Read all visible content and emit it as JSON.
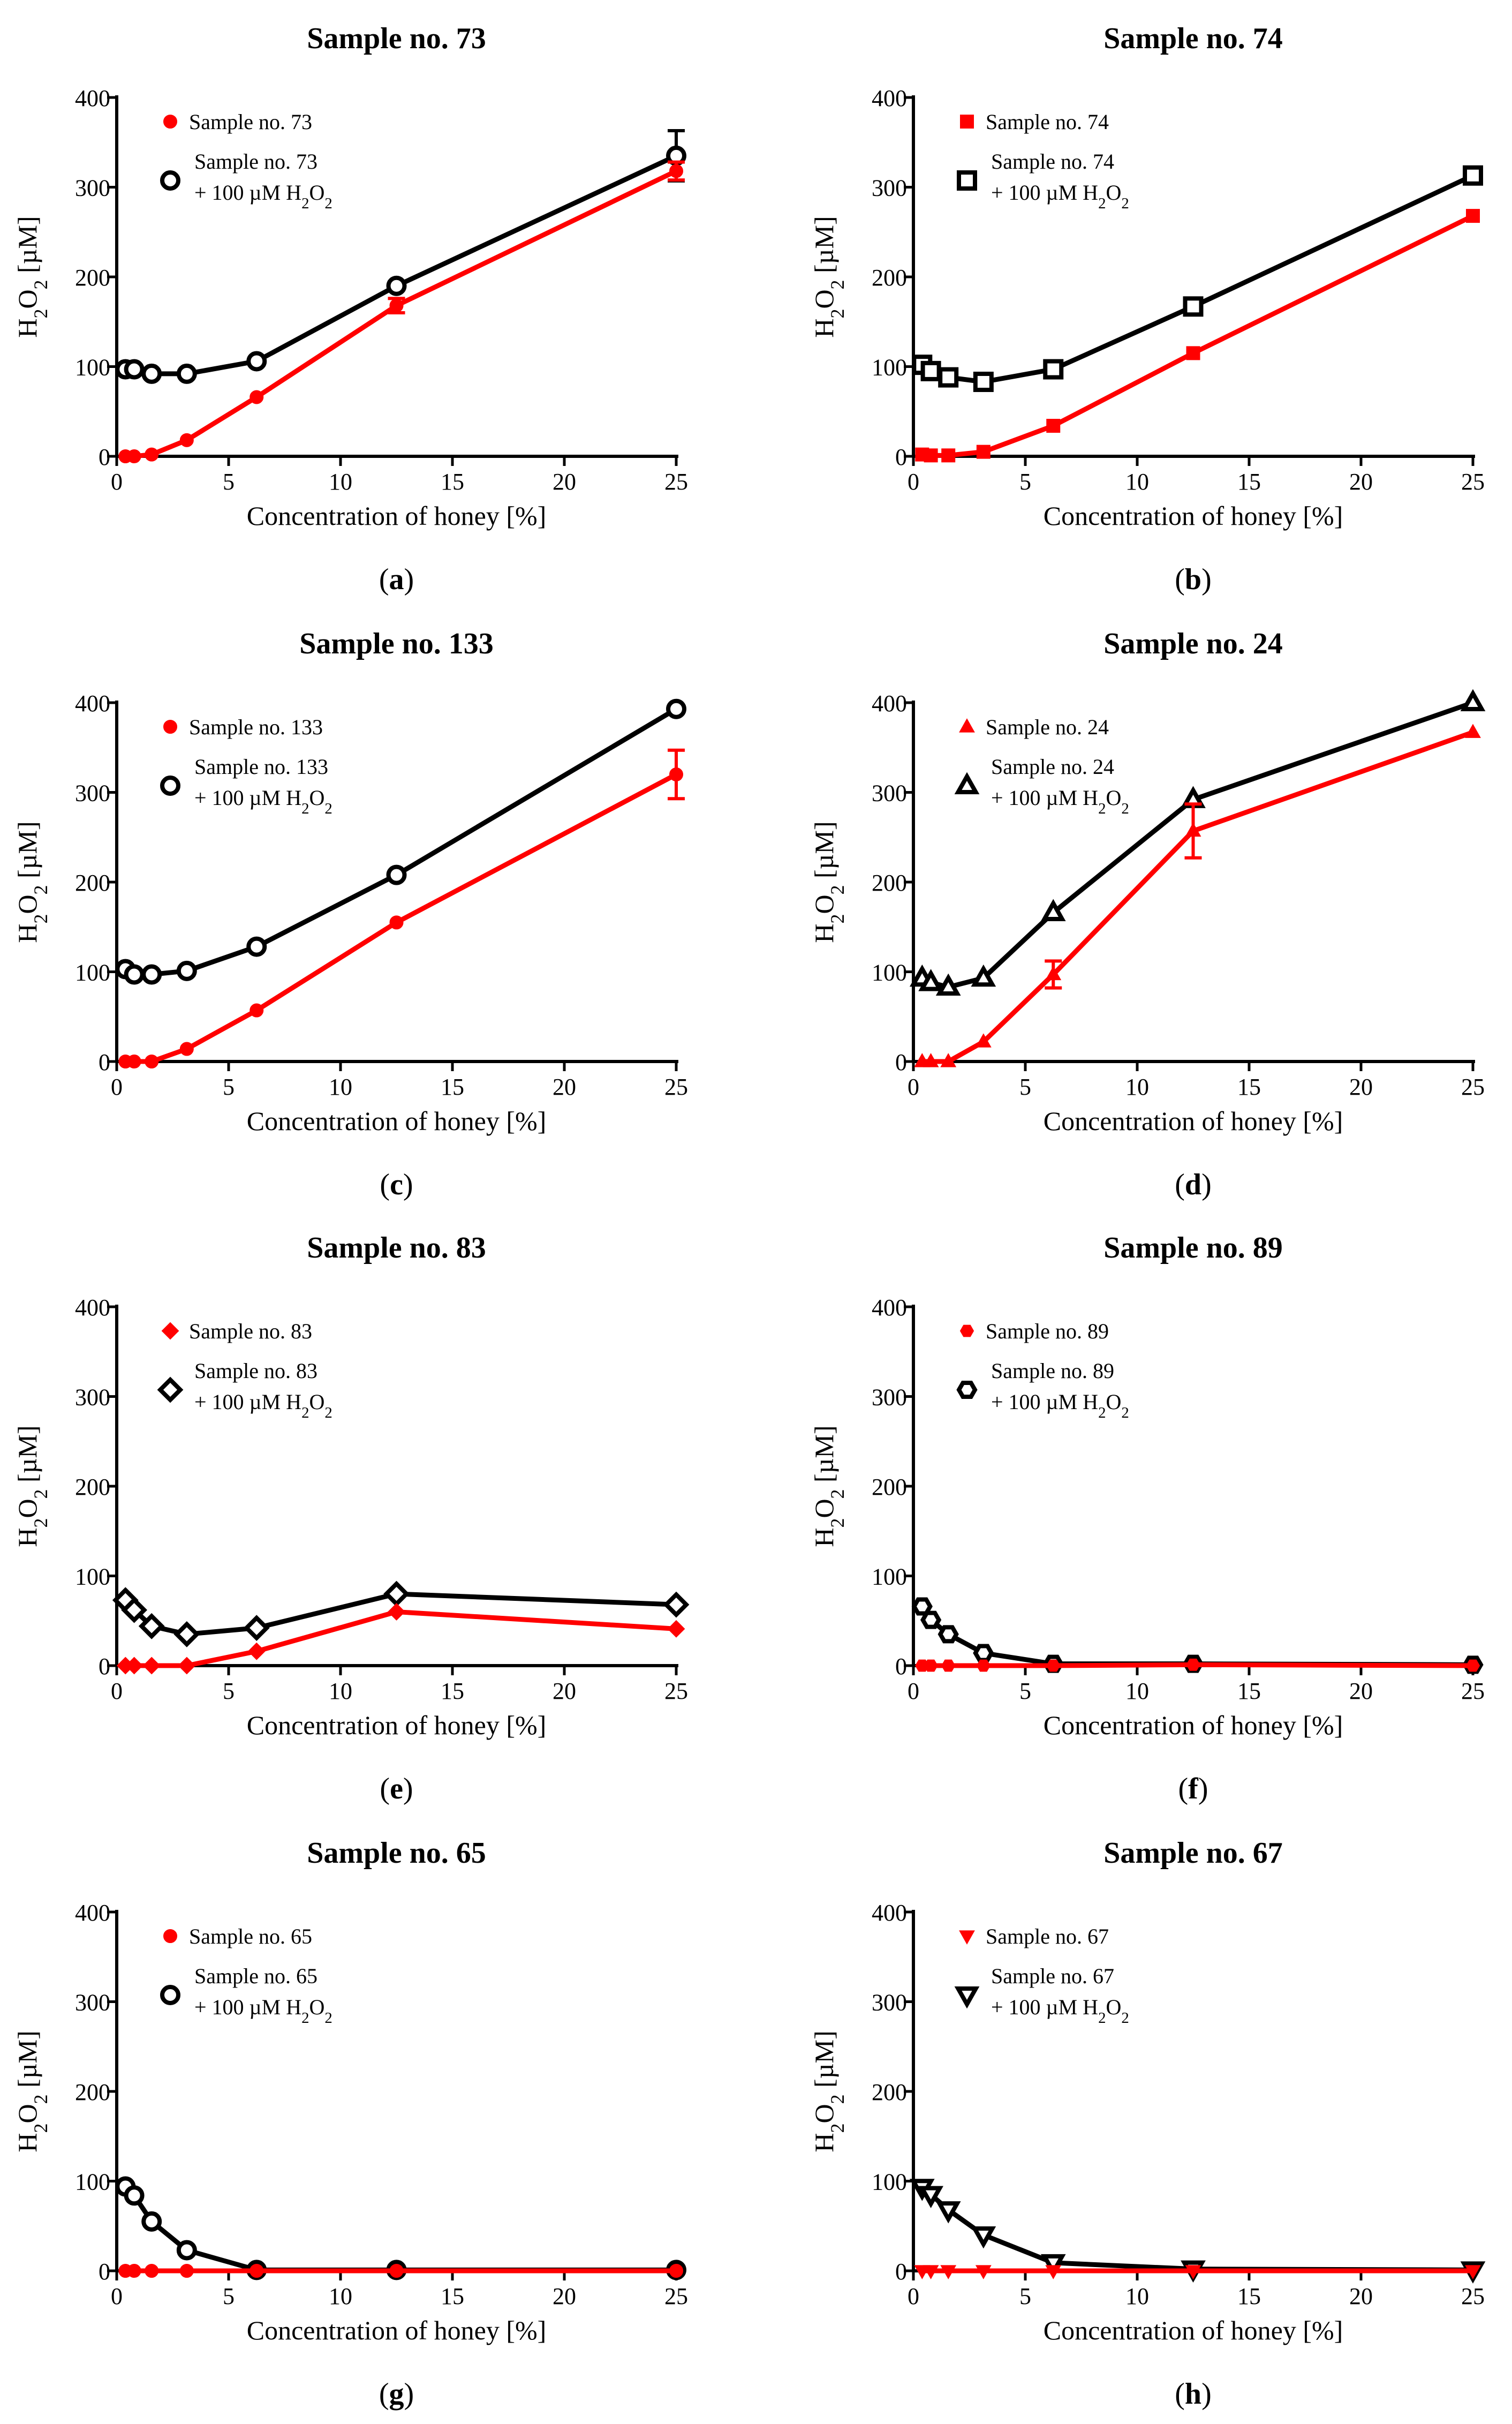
{
  "figure": {
    "x_label": "Concentration of honey [%]",
    "y_label_html": "H2O2 [µM]"
  },
  "chart_data": [
    {
      "type": "line",
      "panel": "(a)",
      "panel_letter": "a",
      "title": "Sample no. 73",
      "xlabel": "Concentration of honey [%]",
      "ylabel": "H2O2 [µM]",
      "xlim": [
        0,
        25
      ],
      "ylim": [
        0,
        400
      ],
      "xticks": [
        0,
        5,
        10,
        15,
        20,
        25
      ],
      "yticks": [
        0,
        100,
        200,
        300,
        400
      ],
      "legend_position": "top-left",
      "series": [
        {
          "name": "Sample no. 73",
          "name_line2": "",
          "color": "#ff0000",
          "marker": "circle-filled",
          "x": [
            0.39,
            0.78,
            1.56,
            3.13,
            6.25,
            12.5,
            25
          ],
          "y": [
            0,
            0,
            2,
            18,
            66,
            168,
            318
          ],
          "err": [
            0,
            0,
            0,
            0,
            0,
            8,
            10
          ]
        },
        {
          "name": "Sample no. 73",
          "name_line2": "+ 100 µM H2O2",
          "color": "#000000",
          "marker": "circle-open",
          "x": [
            0.39,
            0.78,
            1.56,
            3.13,
            6.25,
            12.5,
            25
          ],
          "y": [
            97,
            97,
            92,
            92,
            106,
            190,
            335
          ],
          "err": [
            0,
            0,
            0,
            0,
            0,
            0,
            28
          ]
        }
      ]
    },
    {
      "type": "line",
      "panel": "(b)",
      "panel_letter": "b",
      "title": "Sample no. 74",
      "xlabel": "Concentration of honey [%]",
      "ylabel": "H2O2 [µM]",
      "xlim": [
        0,
        25
      ],
      "ylim": [
        0,
        400
      ],
      "xticks": [
        0,
        5,
        10,
        15,
        20,
        25
      ],
      "yticks": [
        0,
        100,
        200,
        300,
        400
      ],
      "legend_position": "top-left",
      "series": [
        {
          "name": "Sample no. 74",
          "name_line2": "",
          "color": "#ff0000",
          "marker": "square-filled",
          "x": [
            0.39,
            0.78,
            1.56,
            3.13,
            6.25,
            12.5,
            25
          ],
          "y": [
            2,
            1,
            1,
            5,
            34,
            115,
            268
          ],
          "err": [
            0,
            0,
            0,
            0,
            0,
            0,
            0
          ]
        },
        {
          "name": "Sample no. 74",
          "name_line2": "+ 100 µM H2O2",
          "color": "#000000",
          "marker": "square-open",
          "x": [
            0.39,
            0.78,
            1.56,
            3.13,
            6.25,
            12.5,
            25
          ],
          "y": [
            102,
            95,
            88,
            83,
            97,
            167,
            313
          ],
          "err": [
            0,
            0,
            0,
            0,
            0,
            0,
            0
          ]
        }
      ]
    },
    {
      "type": "line",
      "panel": "(c)",
      "panel_letter": "c",
      "title": "Sample no. 133",
      "xlabel": "Concentration of honey [%]",
      "ylabel": "H2O2 [µM]",
      "xlim": [
        0,
        25
      ],
      "ylim": [
        0,
        400
      ],
      "xticks": [
        0,
        5,
        10,
        15,
        20,
        25
      ],
      "yticks": [
        0,
        100,
        200,
        300,
        400
      ],
      "legend_position": "top-left",
      "series": [
        {
          "name": "Sample no. 133",
          "name_line2": "",
          "color": "#ff0000",
          "marker": "circle-filled",
          "x": [
            0.39,
            0.78,
            1.56,
            3.13,
            6.25,
            12.5,
            25
          ],
          "y": [
            0,
            0,
            0,
            14,
            57,
            155,
            320
          ],
          "err": [
            0,
            0,
            0,
            0,
            0,
            0,
            27
          ]
        },
        {
          "name": "Sample no. 133",
          "name_line2": "+ 100 µM H2O2",
          "color": "#000000",
          "marker": "circle-open",
          "x": [
            0.39,
            0.78,
            1.56,
            3.13,
            6.25,
            12.5,
            25
          ],
          "y": [
            103,
            97,
            97,
            101,
            128,
            208,
            393
          ],
          "err": [
            0,
            0,
            0,
            0,
            0,
            0,
            0
          ]
        }
      ]
    },
    {
      "type": "line",
      "panel": "(d)",
      "panel_letter": "d",
      "title": "Sample no. 24",
      "xlabel": "Concentration of honey [%]",
      "ylabel": "H2O2 [µM]",
      "xlim": [
        0,
        25
      ],
      "ylim": [
        0,
        400
      ],
      "xticks": [
        0,
        5,
        10,
        15,
        20,
        25
      ],
      "yticks": [
        0,
        100,
        200,
        300,
        400
      ],
      "legend_position": "top-left",
      "series": [
        {
          "name": "Sample no. 24",
          "name_line2": "",
          "color": "#ff0000",
          "marker": "triangle-filled",
          "x": [
            0.39,
            0.78,
            1.56,
            3.13,
            6.25,
            12.5,
            25
          ],
          "y": [
            0,
            0,
            0,
            22,
            97,
            257,
            367
          ],
          "err": [
            0,
            0,
            0,
            0,
            15,
            30,
            0
          ]
        },
        {
          "name": "Sample no. 24",
          "name_line2": "+ 100 µM H2O2",
          "color": "#000000",
          "marker": "triangle-open",
          "x": [
            0.39,
            0.78,
            1.56,
            3.13,
            6.25,
            12.5,
            25
          ],
          "y": [
            93,
            88,
            83,
            93,
            166,
            292,
            400
          ],
          "err": [
            0,
            0,
            0,
            0,
            0,
            0,
            0
          ]
        }
      ]
    },
    {
      "type": "line",
      "panel": "(e)",
      "panel_letter": "e",
      "title": "Sample no. 83",
      "xlabel": "Concentration of honey [%]",
      "ylabel": "H2O2 [µM]",
      "xlim": [
        0,
        25
      ],
      "ylim": [
        0,
        400
      ],
      "xticks": [
        0,
        5,
        10,
        15,
        20,
        25
      ],
      "yticks": [
        0,
        100,
        200,
        300,
        400
      ],
      "legend_position": "top-left",
      "series": [
        {
          "name": "Sample no. 83",
          "name_line2": "",
          "color": "#ff0000",
          "marker": "diamond-filled",
          "x": [
            0.39,
            0.78,
            1.56,
            3.13,
            6.25,
            12.5,
            25
          ],
          "y": [
            0,
            0,
            0,
            0,
            16,
            60,
            41
          ],
          "err": [
            0,
            0,
            0,
            0,
            0,
            0,
            0
          ]
        },
        {
          "name": "Sample no. 83",
          "name_line2": "+ 100 µM H2O2",
          "color": "#000000",
          "marker": "diamond-open",
          "x": [
            0.39,
            0.78,
            1.56,
            3.13,
            6.25,
            12.5,
            25
          ],
          "y": [
            73,
            62,
            44,
            35,
            42,
            80,
            68
          ],
          "err": [
            0,
            0,
            0,
            0,
            0,
            0,
            0
          ]
        }
      ]
    },
    {
      "type": "line",
      "panel": "(f)",
      "panel_letter": "f",
      "title": "Sample no. 89",
      "xlabel": "Concentration of honey [%]",
      "ylabel": "H2O2 [µM]",
      "xlim": [
        0,
        25
      ],
      "ylim": [
        0,
        400
      ],
      "xticks": [
        0,
        5,
        10,
        15,
        20,
        25
      ],
      "yticks": [
        0,
        100,
        200,
        300,
        400
      ],
      "legend_position": "top-left",
      "series": [
        {
          "name": "Sample no. 89",
          "name_line2": "",
          "color": "#ff0000",
          "marker": "hexagon-filled",
          "x": [
            0.39,
            0.78,
            1.56,
            3.13,
            6.25,
            12.5,
            25
          ],
          "y": [
            0,
            0,
            0,
            0,
            0,
            1,
            0
          ],
          "err": [
            0,
            0,
            0,
            0,
            0,
            0,
            0
          ]
        },
        {
          "name": "Sample no. 89",
          "name_line2": "+ 100 µM H2O2",
          "color": "#000000",
          "marker": "hexagon-open",
          "x": [
            0.39,
            0.78,
            1.56,
            3.13,
            6.25,
            12.5,
            25
          ],
          "y": [
            66,
            51,
            35,
            14,
            2,
            2,
            1
          ],
          "err": [
            0,
            0,
            0,
            0,
            0,
            0,
            0
          ]
        }
      ]
    },
    {
      "type": "line",
      "panel": "(g)",
      "panel_letter": "g",
      "title": "Sample no. 65",
      "xlabel": "Concentration of honey [%]",
      "ylabel": "H2O2 [µM]",
      "xlim": [
        0,
        25
      ],
      "ylim": [
        0,
        400
      ],
      "xticks": [
        0,
        5,
        10,
        15,
        20,
        25
      ],
      "yticks": [
        0,
        100,
        200,
        300,
        400
      ],
      "legend_position": "top-left",
      "series": [
        {
          "name": "Sample no. 65",
          "name_line2": "",
          "color": "#ff0000",
          "marker": "circle-filled",
          "x": [
            0.39,
            0.78,
            1.56,
            3.13,
            6.25,
            12.5,
            25
          ],
          "y": [
            0,
            0,
            0,
            0,
            0,
            0,
            0
          ],
          "err": [
            0,
            0,
            0,
            0,
            0,
            0,
            0
          ]
        },
        {
          "name": "Sample no. 65",
          "name_line2": "+ 100 µM H2O2",
          "color": "#000000",
          "marker": "circle-open",
          "x": [
            0.39,
            0.78,
            1.56,
            3.13,
            6.25,
            12.5,
            25
          ],
          "y": [
            94,
            84,
            55,
            23,
            1,
            1,
            1
          ],
          "err": [
            0,
            0,
            0,
            0,
            0,
            0,
            0
          ]
        }
      ]
    },
    {
      "type": "line",
      "panel": "(h)",
      "panel_letter": "h",
      "title": "Sample no. 67",
      "xlabel": "Concentration of honey [%]",
      "ylabel": "H2O2 [µM]",
      "xlim": [
        0,
        25
      ],
      "ylim": [
        0,
        400
      ],
      "xticks": [
        0,
        5,
        10,
        15,
        20,
        25
      ],
      "yticks": [
        0,
        100,
        200,
        300,
        400
      ],
      "legend_position": "top-left",
      "series": [
        {
          "name": "Sample no. 67",
          "name_line2": "",
          "color": "#ff0000",
          "marker": "triangle-down-filled",
          "x": [
            0.39,
            0.78,
            1.56,
            3.13,
            6.25,
            12.5,
            25
          ],
          "y": [
            0,
            0,
            0,
            0,
            0,
            0,
            0
          ],
          "err": [
            0,
            0,
            0,
            0,
            0,
            0,
            0
          ]
        },
        {
          "name": "Sample no. 67",
          "name_line2": "+ 100 µM H2O2",
          "color": "#000000",
          "marker": "triangle-down-open",
          "x": [
            0.39,
            0.78,
            1.56,
            3.13,
            6.25,
            12.5,
            25
          ],
          "y": [
            93,
            85,
            68,
            40,
            9,
            2,
            1
          ],
          "err": [
            0,
            0,
            0,
            0,
            0,
            0,
            0
          ]
        }
      ]
    }
  ]
}
